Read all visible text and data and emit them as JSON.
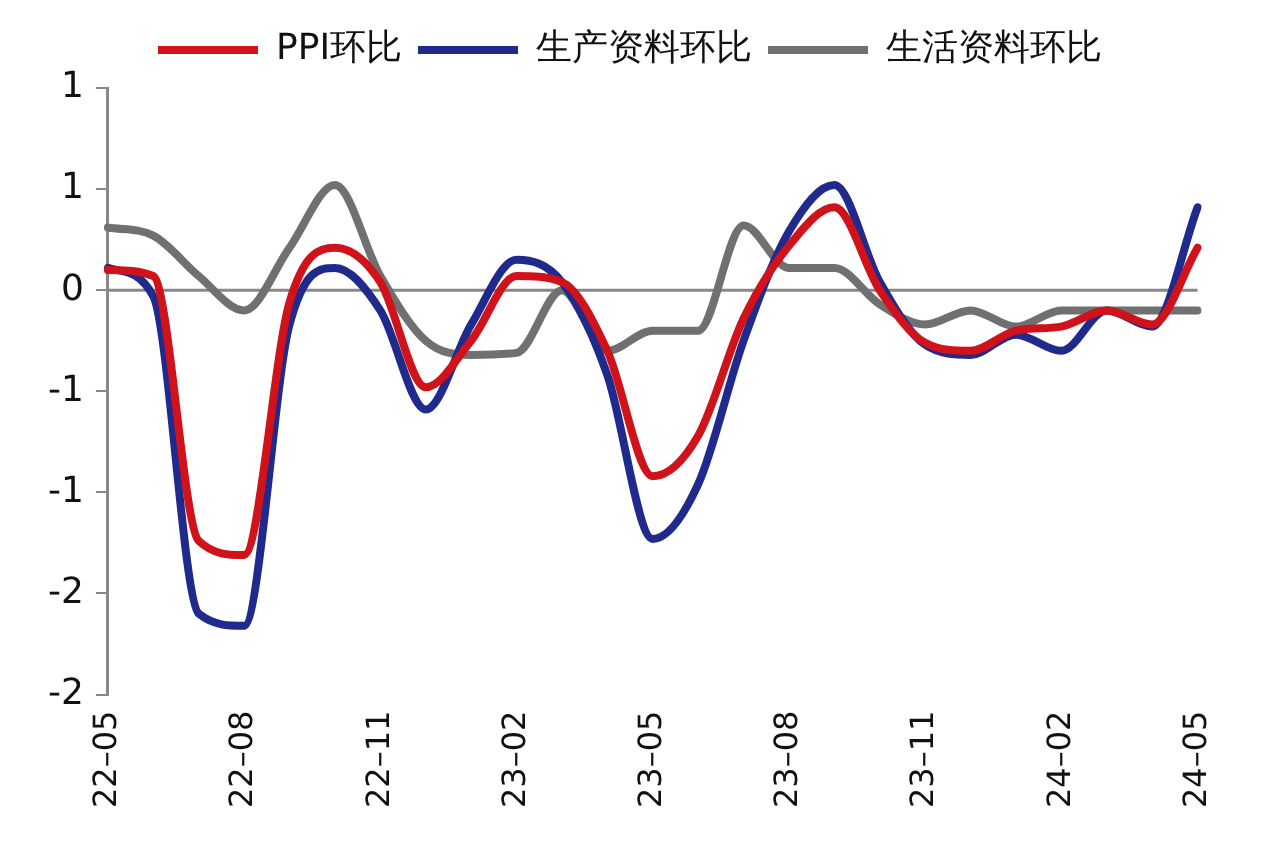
{
  "chart_data": {
    "type": "line",
    "categories": [
      "22–05",
      null,
      null,
      "22–08",
      null,
      null,
      "22–11",
      null,
      null,
      "23–02",
      null,
      null,
      "23–05",
      null,
      null,
      "23–08",
      null,
      null,
      "23–11",
      null,
      null,
      "24–02",
      null,
      null,
      "24–05"
    ],
    "series": [
      {
        "name": "PPI环比",
        "color": "#d0121b",
        "values": [
          0.1,
          0.07,
          -1.24,
          -1.31,
          -0.06,
          0.21,
          0.04,
          -0.48,
          -0.25,
          0.07,
          0.04,
          -0.3,
          -0.92,
          -0.72,
          -0.14,
          0.22,
          0.41,
          0.0,
          -0.26,
          -0.3,
          -0.2,
          -0.18,
          -0.1,
          -0.17,
          0.21
        ]
      },
      {
        "name": "生产资料环比",
        "color": "#1f2a8c",
        "values": [
          0.11,
          -0.03,
          -1.6,
          -1.66,
          -0.17,
          0.11,
          -0.1,
          -0.59,
          -0.17,
          0.15,
          0.04,
          -0.42,
          -1.23,
          -0.96,
          -0.25,
          0.29,
          0.52,
          0.04,
          -0.27,
          -0.32,
          -0.22,
          -0.3,
          -0.1,
          -0.18,
          0.41
        ]
      },
      {
        "name": "生活资料环比",
        "color": "#707070",
        "values": [
          0.31,
          0.27,
          0.07,
          -0.1,
          0.21,
          0.52,
          0.07,
          -0.25,
          -0.32,
          -0.31,
          0.0,
          -0.3,
          -0.2,
          -0.2,
          0.32,
          0.11,
          0.11,
          -0.07,
          -0.17,
          -0.1,
          -0.18,
          -0.1,
          -0.1,
          -0.1,
          -0.1
        ]
      }
    ],
    "ylim": [
      -2,
      1
    ],
    "yticks": [
      1,
      {
        "value": 0.5,
        "label": "1"
      },
      0,
      {
        "value": -0.5,
        "label": "-1"
      },
      -1,
      {
        "value": -1.5,
        "label": "-2"
      },
      -2
    ],
    "ref_lines": [
      {
        "axis": "y",
        "value": 0,
        "color": "#888888"
      }
    ],
    "legend": "top",
    "grid": false,
    "marker": "none",
    "line_style": "solid"
  }
}
